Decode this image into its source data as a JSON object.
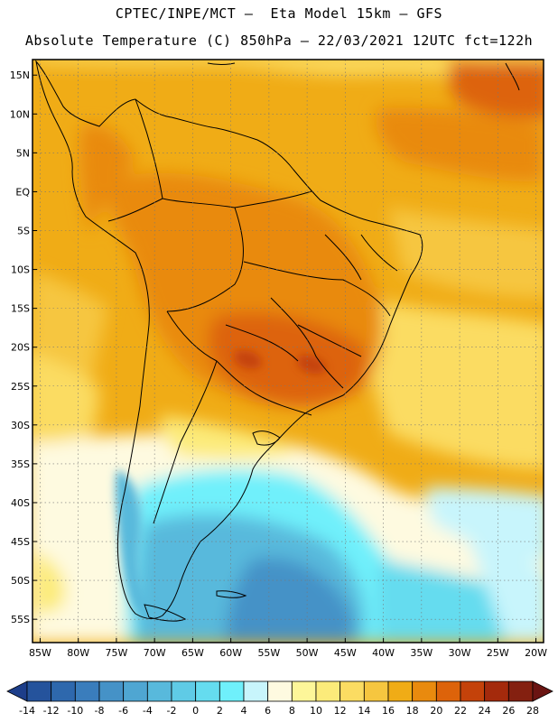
{
  "header": {
    "line1": "CPTEC/INPE/MCT –  Eta Model 15km – GFS",
    "line2": "Absolute Temperature (C) 850hPa – 22/03/2021 12UTC fct=122h"
  },
  "map": {
    "lat_labels": [
      "15N",
      "10N",
      "5N",
      "EQ",
      "5S",
      "10S",
      "15S",
      "20S",
      "25S",
      "30S",
      "35S",
      "40S",
      "45S",
      "50S",
      "55S"
    ],
    "lat_values": [
      15,
      10,
      5,
      0,
      -5,
      -10,
      -15,
      -20,
      -25,
      -30,
      -35,
      -40,
      -45,
      -50,
      -55
    ],
    "lon_labels": [
      "85W",
      "80W",
      "75W",
      "70W",
      "65W",
      "60W",
      "55W",
      "50W",
      "45W",
      "40W",
      "35W",
      "30W",
      "25W",
      "20W"
    ],
    "lon_values": [
      -85,
      -80,
      -75,
      -70,
      -65,
      -60,
      -55,
      -50,
      -45,
      -40,
      -35,
      -30,
      -25,
      -20
    ],
    "lon_range": [
      -86,
      -19
    ],
    "lat_range": [
      -58,
      17
    ],
    "grid": "dotted"
  },
  "colorbar": {
    "labels": [
      "-14",
      "-12",
      "-10",
      "-8",
      "-6",
      "-4",
      "-2",
      "0",
      "2",
      "4",
      "6",
      "8",
      "10",
      "12",
      "14",
      "16",
      "18",
      "20",
      "22",
      "24",
      "26",
      "28"
    ],
    "colors": [
      "#1d3e8a",
      "#25539c",
      "#2e68ad",
      "#3a7dbc",
      "#4592c7",
      "#4fa6d2",
      "#58b9dc",
      "#5fcbe6",
      "#65dcef",
      "#6ff0fb",
      "#c8f5fc",
      "#fefae0",
      "#fdf699",
      "#fceb7a",
      "#fbdc62",
      "#f6c63f",
      "#f0ac16",
      "#e98a0e",
      "#dd630a",
      "#c4420a",
      "#a42a0c",
      "#842010",
      "#6a1412"
    ]
  }
}
